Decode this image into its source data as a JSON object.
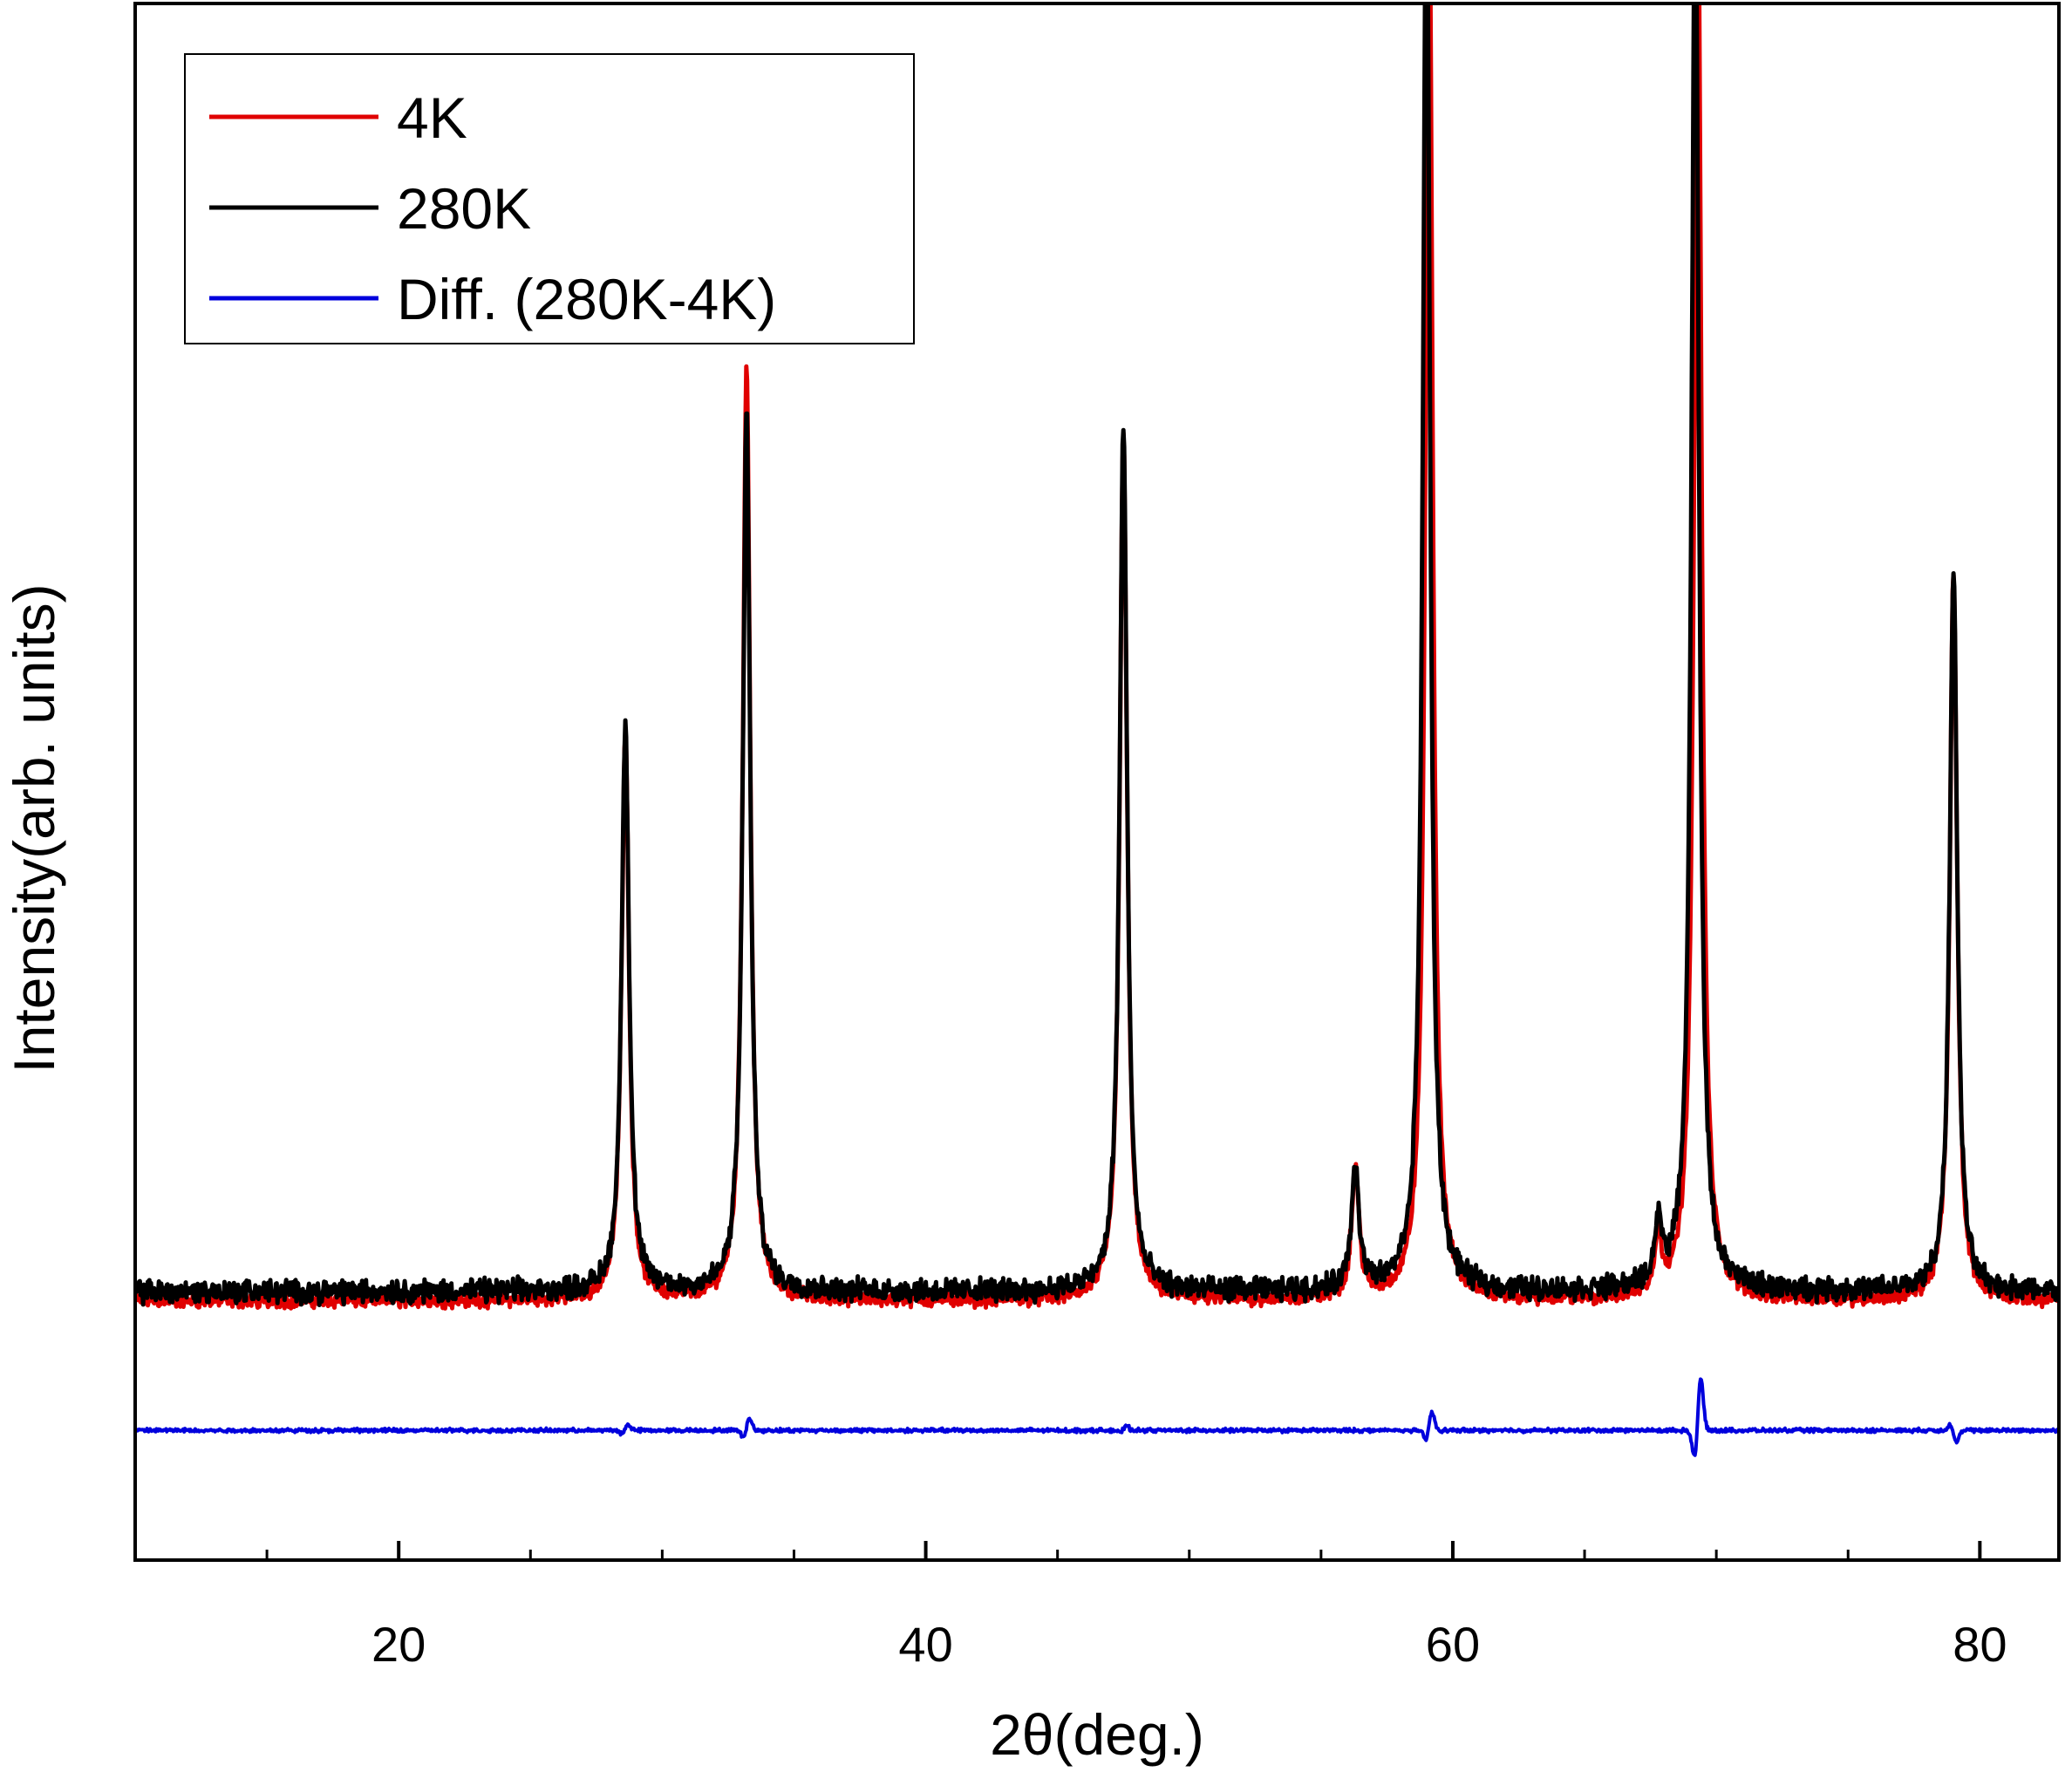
{
  "chart_data": {
    "type": "line",
    "xlabel": "2θ(deg.)",
    "ylabel": "Intensity(arb. units)",
    "xlim": [
      10,
      83
    ],
    "ylim": [
      -20,
      100
    ],
    "x_ticks": [
      20,
      40,
      60,
      80
    ],
    "x_tick_labels": [
      "20",
      "40",
      "60",
      "80"
    ],
    "x_minor_step": 5,
    "y_tick_labels_shown": false,
    "legend_position": "top-left",
    "grid": false,
    "baseline": 0,
    "diff_offset": -10,
    "series": [
      {
        "name": "4K",
        "color": "#e00000",
        "background": 0,
        "peaks": [
          {
            "x": 28.6,
            "height": 44
          },
          {
            "x": 33.2,
            "height": 72
          },
          {
            "x": 47.5,
            "height": 67
          },
          {
            "x": 56.3,
            "height": 10
          },
          {
            "x": 59.1,
            "height": 110
          },
          {
            "x": 67.8,
            "height": 4
          },
          {
            "x": 69.3,
            "height": 110
          },
          {
            "x": 79.0,
            "height": 56
          }
        ]
      },
      {
        "name": "280K",
        "color": "#000000",
        "background": 0.7,
        "peaks": [
          {
            "x": 28.6,
            "height": 44
          },
          {
            "x": 33.2,
            "height": 68
          },
          {
            "x": 47.5,
            "height": 67
          },
          {
            "x": 56.3,
            "height": 9.5
          },
          {
            "x": 59.0,
            "height": 110
          },
          {
            "x": 67.8,
            "height": 4.5
          },
          {
            "x": 69.2,
            "height": 110
          },
          {
            "x": 79.0,
            "height": 56
          }
        ]
      },
      {
        "name": "Diff. (280K-4K)",
        "color": "#0000dd",
        "values_description_free": true,
        "features": [
          {
            "x": 28.6,
            "amplitude": 0.5
          },
          {
            "x": 33.2,
            "amplitude": 1.0
          },
          {
            "x": 47.5,
            "amplitude": 0.4
          },
          {
            "x": 59.1,
            "amplitude": 1.6
          },
          {
            "x": 69.3,
            "amplitude": 4.5
          },
          {
            "x": 79.0,
            "amplitude": -1.0
          }
        ]
      }
    ]
  }
}
